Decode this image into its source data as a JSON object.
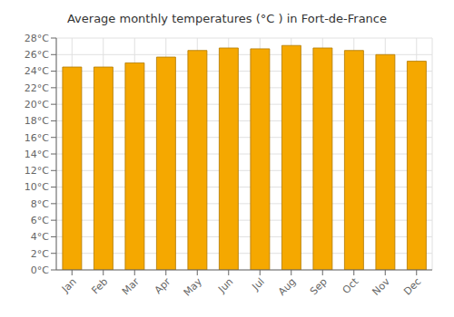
{
  "chart_data": {
    "type": "bar",
    "title": "Average monthly temperatures (°C ) in Fort-de-France",
    "categories": [
      "Jan",
      "Feb",
      "Mar",
      "Apr",
      "May",
      "Jun",
      "Jul",
      "Aug",
      "Sep",
      "Oct",
      "Nov",
      "Dec"
    ],
    "values": [
      24.5,
      24.5,
      25.0,
      25.7,
      26.5,
      26.8,
      26.7,
      27.1,
      26.8,
      26.5,
      26.0,
      25.2
    ],
    "color": "#F5A800",
    "ylim": [
      0,
      28
    ],
    "yticks": [
      {
        "value": 0,
        "label": "0°C"
      },
      {
        "value": 2,
        "label": "2°C"
      },
      {
        "value": 4,
        "label": "4°C"
      },
      {
        "value": 6,
        "label": "6°C"
      },
      {
        "value": 8,
        "label": "8°C"
      },
      {
        "value": 10,
        "label": "10°C"
      },
      {
        "value": 12,
        "label": "12°C"
      },
      {
        "value": 14,
        "label": "14°C"
      },
      {
        "value": 16,
        "label": "16°C"
      },
      {
        "value": 18,
        "label": "18°C"
      },
      {
        "value": 20,
        "label": "20°C"
      },
      {
        "value": 22,
        "label": "22°C"
      },
      {
        "value": 24,
        "label": "24°C"
      },
      {
        "value": 26,
        "label": "26°C"
      },
      {
        "value": 28,
        "label": "28°C"
      }
    ],
    "grid": true
  }
}
